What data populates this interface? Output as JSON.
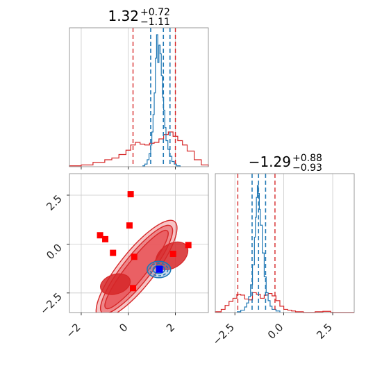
{
  "chart_data": {
    "type": "corner",
    "grid": true,
    "colors": {
      "prior_red": "#d62728",
      "posterior_blue": "#1f77b4",
      "marker_red": "#ff0000",
      "marker_blue": "#0000ff",
      "contour_fill": "#e8565a"
    },
    "param1": {
      "title_value": "1.32",
      "title_plus": "+0.72",
      "title_minus": "−1.11",
      "xlim": [
        -2.5,
        3.4
      ],
      "red_quantiles": [
        0.2,
        2.0
      ],
      "blue_quantiles": [
        0.95,
        1.49,
        1.77
      ],
      "red_hist": {
        "edges": [
          -2.5,
          -2.0,
          -1.5,
          -1.0,
          -0.7,
          -0.4,
          -0.1,
          0.1,
          0.3,
          0.5,
          0.7,
          0.9,
          1.1,
          1.3,
          1.5,
          1.7,
          1.9,
          2.1,
          2.3,
          2.5,
          2.8,
          3.1,
          3.4
        ],
        "counts": [
          0.1,
          0.2,
          0.5,
          0.8,
          1.0,
          1.4,
          1.9,
          2.5,
          2.8,
          2.6,
          2.5,
          2.7,
          2.8,
          3.2,
          3.7,
          4.0,
          3.5,
          3.0,
          2.5,
          1.8,
          0.8,
          0.2
        ]
      },
      "blue_hist": {
        "x": [
          0.6,
          0.7,
          0.8,
          0.88,
          0.95,
          1.0,
          1.05,
          1.1,
          1.15,
          1.2,
          1.25,
          1.3,
          1.35,
          1.4,
          1.45,
          1.5,
          1.55,
          1.6,
          1.68,
          1.75,
          1.85,
          1.95,
          2.05,
          2.2
        ],
        "y": [
          0.1,
          0.3,
          0.8,
          1.5,
          2.5,
          4.0,
          6.0,
          8.5,
          12.5,
          15.2,
          12.0,
          14.0,
          13.0,
          10.5,
          8.0,
          6.5,
          4.5,
          3.0,
          2.0,
          1.2,
          0.6,
          0.3,
          0.1,
          0.0
        ]
      },
      "ymax": 16.0,
      "ticks": [
        -2,
        0,
        2
      ],
      "tick_labels": [
        "−2",
        "0",
        "2"
      ]
    },
    "param2": {
      "title_value": "−1.29",
      "title_plus": "+0.88",
      "title_minus": "−0.93",
      "xlim": [
        -3.5,
        3.6
      ],
      "red_quantiles": [
        -2.35,
        -0.45
      ],
      "blue_quantiles": [
        -1.62,
        -1.29,
        -0.93
      ],
      "red_hist": {
        "edges": [
          -3.5,
          -3.2,
          -3.0,
          -2.8,
          -2.6,
          -2.4,
          -2.2,
          -2.0,
          -1.8,
          -1.6,
          -1.4,
          -1.2,
          -1.0,
          -0.8,
          -0.6,
          -0.4,
          -0.2,
          0.0,
          0.2,
          0.4,
          0.6,
          1.0,
          1.6,
          2.0,
          2.4,
          3.0,
          3.6
        ],
        "counts": [
          0.1,
          0.4,
          0.9,
          1.4,
          1.8,
          2.3,
          2.2,
          1.7,
          1.6,
          2.5,
          2.3,
          1.8,
          2.2,
          2.4,
          2.1,
          1.5,
          0.8,
          0.4,
          0.3,
          0.2,
          0.1,
          0.0,
          0.1,
          0.15,
          0.0,
          0.0
        ]
      },
      "blue_hist": {
        "x": [
          -2.4,
          -2.2,
          -2.0,
          -1.9,
          -1.8,
          -1.7,
          -1.6,
          -1.5,
          -1.45,
          -1.4,
          -1.35,
          -1.3,
          -1.25,
          -1.2,
          -1.1,
          -1.0,
          -0.9,
          -0.8,
          -0.7,
          -0.6,
          -0.4,
          -0.2
        ],
        "y": [
          0.1,
          0.3,
          0.7,
          1.2,
          2.0,
          3.5,
          6.0,
          9.5,
          12.0,
          14.5,
          16.0,
          15.0,
          13.0,
          11.0,
          7.5,
          4.5,
          2.5,
          1.5,
          0.8,
          0.4,
          0.2,
          0.05
        ]
      },
      "ymax": 17.5,
      "ticks": [
        -2.5,
        0.0,
        2.5
      ],
      "tick_labels": [
        "−2.5",
        "0.0",
        "2.5"
      ]
    },
    "scatter": {
      "xlim": [
        -2.5,
        3.4
      ],
      "ylim": [
        -3.5,
        3.6
      ],
      "xticks": [
        -2,
        0,
        2
      ],
      "xtick_labels": [
        "−2",
        "0",
        "2"
      ],
      "yticks": [
        -2.5,
        0.0,
        2.5
      ],
      "ytick_labels": [
        "−2.5",
        "0.0",
        "2.5"
      ],
      "red_points": [
        {
          "x": 0.1,
          "y": 2.55
        },
        {
          "x": 0.05,
          "y": 0.95
        },
        {
          "x": -1.2,
          "y": 0.45
        },
        {
          "x": -0.98,
          "y": 0.25
        },
        {
          "x": -0.65,
          "y": -0.45
        },
        {
          "x": 0.25,
          "y": -0.65
        },
        {
          "x": 0.2,
          "y": -2.25
        },
        {
          "x": 1.9,
          "y": -0.5
        },
        {
          "x": 2.55,
          "y": -0.05
        }
      ],
      "blue_point": {
        "x": 1.32,
        "y": -1.29
      },
      "red_contours": [
        {
          "cx": 0.35,
          "cy": -1.3,
          "a": 2.6,
          "b": 0.9,
          "angle": 0.9
        },
        {
          "cx": 0.35,
          "cy": -1.3,
          "a": 2.35,
          "b": 0.7,
          "angle": 0.9
        },
        {
          "cx": 0.35,
          "cy": -1.3,
          "a": 2.1,
          "b": 0.5,
          "angle": 0.9
        }
      ],
      "red_blobs": [
        {
          "cx": 1.85,
          "cy": -0.6,
          "a": 0.75,
          "b": 0.6,
          "angle": 0.6
        },
        {
          "cx": -0.55,
          "cy": -2.05,
          "a": 0.65,
          "b": 0.5,
          "angle": 0.3
        }
      ],
      "blue_contours": [
        {
          "cx": 1.3,
          "cy": -1.3,
          "a": 0.5,
          "b": 0.42
        },
        {
          "cx": 1.3,
          "cy": -1.3,
          "a": 0.38,
          "b": 0.32
        },
        {
          "cx": 1.3,
          "cy": -1.3,
          "a": 0.25,
          "b": 0.2
        }
      ]
    }
  }
}
